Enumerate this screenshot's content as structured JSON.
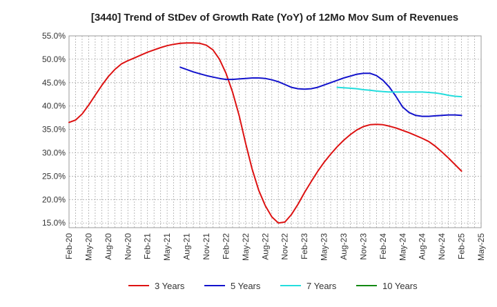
{
  "chart_data": {
    "type": "line",
    "title": "[3440]  Trend of StDev of Growth Rate (YoY) of 12Mo Mov Sum of Revenues",
    "xlabel": "",
    "ylabel": "",
    "ylim": [
      14.0,
      55.0
    ],
    "y_ticks": [
      15,
      20,
      25,
      30,
      35,
      40,
      45,
      50,
      55
    ],
    "y_tick_labels": [
      "15.0%",
      "20.0%",
      "25.0%",
      "30.0%",
      "35.0%",
      "40.0%",
      "45.0%",
      "50.0%",
      "55.0%"
    ],
    "x_range": [
      0,
      63
    ],
    "x_ticks": [
      0,
      3,
      6,
      9,
      12,
      15,
      18,
      21,
      24,
      27,
      30,
      33,
      36,
      39,
      42,
      45,
      48,
      51,
      54,
      57,
      60,
      63
    ],
    "x_tick_labels": [
      "Feb-20",
      "May-20",
      "Aug-20",
      "Nov-20",
      "Feb-21",
      "May-21",
      "Aug-21",
      "Nov-21",
      "Feb-22",
      "May-22",
      "Aug-22",
      "Nov-22",
      "Feb-23",
      "May-23",
      "Aug-23",
      "Nov-23",
      "Feb-24",
      "May-24",
      "Aug-24",
      "Nov-24",
      "Feb-25",
      "May-25"
    ],
    "grid": true,
    "legend_position": "bottom",
    "series": [
      {
        "name": "3 Years",
        "color": "#dd1111",
        "x": [
          0,
          1,
          2,
          3,
          4,
          5,
          6,
          7,
          8,
          9,
          10,
          11,
          12,
          13,
          14,
          15,
          16,
          17,
          18,
          19,
          20,
          21,
          22,
          23,
          24,
          25,
          26,
          27,
          28,
          29,
          30,
          31,
          32,
          33,
          34,
          35,
          36,
          37,
          38,
          39,
          40,
          41,
          42,
          43,
          44,
          45,
          46,
          47,
          48,
          49,
          50,
          51,
          52,
          53,
          54,
          55,
          56,
          57,
          58,
          59,
          60
        ],
        "values": [
          36.5,
          37.0,
          38.3,
          40.2,
          42.3,
          44.4,
          46.3,
          47.8,
          49.0,
          49.7,
          50.3,
          50.9,
          51.5,
          52.0,
          52.5,
          52.9,
          53.2,
          53.4,
          53.5,
          53.5,
          53.4,
          53.0,
          52.0,
          50.0,
          47.0,
          43.0,
          38.0,
          32.0,
          26.5,
          22.0,
          18.7,
          16.3,
          15.0,
          15.2,
          16.8,
          19.0,
          21.5,
          23.8,
          26.0,
          28.0,
          29.7,
          31.3,
          32.7,
          33.9,
          34.9,
          35.6,
          36.0,
          36.1,
          36.0,
          35.7,
          35.3,
          34.8,
          34.3,
          33.7,
          33.1,
          32.4,
          31.4,
          30.2,
          28.9,
          27.5,
          26.1
        ]
      },
      {
        "name": "5 Years",
        "color": "#1111cc",
        "x": [
          17,
          18,
          19,
          20,
          21,
          22,
          23,
          24,
          25,
          26,
          27,
          28,
          29,
          30,
          31,
          32,
          33,
          34,
          35,
          36,
          37,
          38,
          39,
          40,
          41,
          42,
          43,
          44,
          45,
          46,
          47,
          48,
          49,
          50,
          51,
          52,
          53,
          54,
          55,
          56,
          57,
          58,
          59,
          60
        ],
        "values": [
          48.3,
          47.8,
          47.3,
          46.9,
          46.5,
          46.2,
          45.9,
          45.7,
          45.7,
          45.8,
          45.9,
          46.0,
          46.0,
          45.9,
          45.6,
          45.2,
          44.6,
          44.0,
          43.7,
          43.6,
          43.7,
          44.0,
          44.5,
          45.0,
          45.5,
          46.0,
          46.4,
          46.8,
          47.0,
          47.0,
          46.5,
          45.5,
          44.0,
          42.0,
          39.8,
          38.6,
          38.0,
          37.8,
          37.8,
          37.9,
          38.0,
          38.1,
          38.1,
          38.0
        ]
      },
      {
        "name": "7 Years",
        "color": "#22dddd",
        "x": [
          41,
          42,
          43,
          44,
          45,
          46,
          47,
          48,
          49,
          50,
          51,
          52,
          53,
          54,
          55,
          56,
          57,
          58,
          59,
          60
        ],
        "values": [
          44.0,
          43.9,
          43.8,
          43.7,
          43.5,
          43.4,
          43.2,
          43.1,
          43.0,
          43.0,
          43.0,
          43.0,
          43.0,
          43.0,
          42.9,
          42.8,
          42.6,
          42.3,
          42.1,
          42.0
        ]
      },
      {
        "name": "10 Years",
        "color": "#118811",
        "x": [],
        "values": []
      }
    ]
  }
}
